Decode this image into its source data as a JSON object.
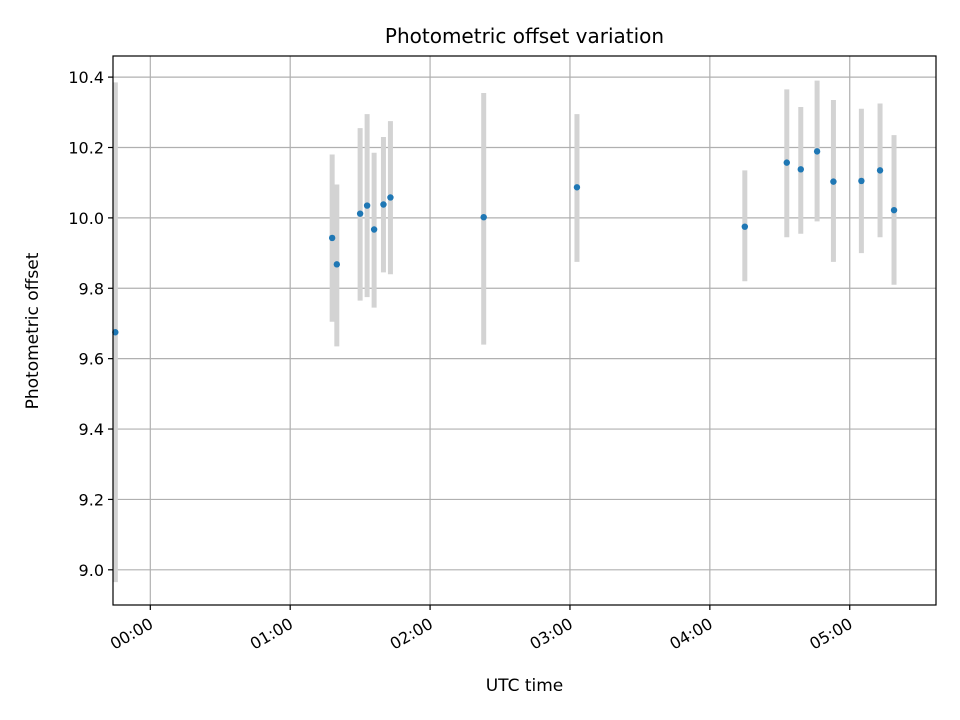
{
  "chart_data": {
    "type": "scatter",
    "title": "Photometric offset variation",
    "xlabel": "UTC time",
    "ylabel": "Photometric offset",
    "x_unit": "UTC time (HH:MM)",
    "xlim": [
      "-00:16",
      "05:37"
    ],
    "ylim": [
      8.9,
      10.46
    ],
    "x_ticks": [
      "00:00",
      "01:00",
      "02:00",
      "03:00",
      "04:00",
      "05:00"
    ],
    "y_ticks": [
      "9.0",
      "9.2",
      "9.4",
      "9.6",
      "9.8",
      "10.0",
      "10.2",
      "10.4"
    ],
    "grid": true,
    "legend": "none",
    "colors": {
      "marker": "#1f77b4",
      "error_bar": "#d3d3d3",
      "grid": "#b0b0b0"
    },
    "series": [
      {
        "x": [
          "-00:15",
          "01:18",
          "01:20",
          "01:30",
          "01:33",
          "01:36",
          "01:40",
          "01:43",
          "02:23",
          "03:03",
          "04:15",
          "04:33",
          "04:39",
          "04:46",
          "04:53",
          "05:05",
          "05:13",
          "05:19"
        ],
        "y": [
          9.675,
          9.943,
          9.868,
          10.012,
          10.035,
          9.967,
          10.038,
          10.058,
          10.002,
          10.087,
          9.975,
          10.157,
          10.138,
          10.189,
          10.103,
          10.105,
          10.135,
          10.022
        ],
        "yerr_low": [
          8.965,
          9.705,
          9.635,
          9.765,
          9.775,
          9.745,
          9.845,
          9.84,
          9.64,
          9.875,
          9.82,
          9.945,
          9.955,
          9.99,
          9.875,
          9.9,
          9.945,
          9.81
        ],
        "yerr_high": [
          10.385,
          10.18,
          10.095,
          10.255,
          10.295,
          10.185,
          10.23,
          10.275,
          10.355,
          10.295,
          10.135,
          10.365,
          10.315,
          10.39,
          10.335,
          10.31,
          10.325,
          10.235
        ]
      }
    ]
  }
}
